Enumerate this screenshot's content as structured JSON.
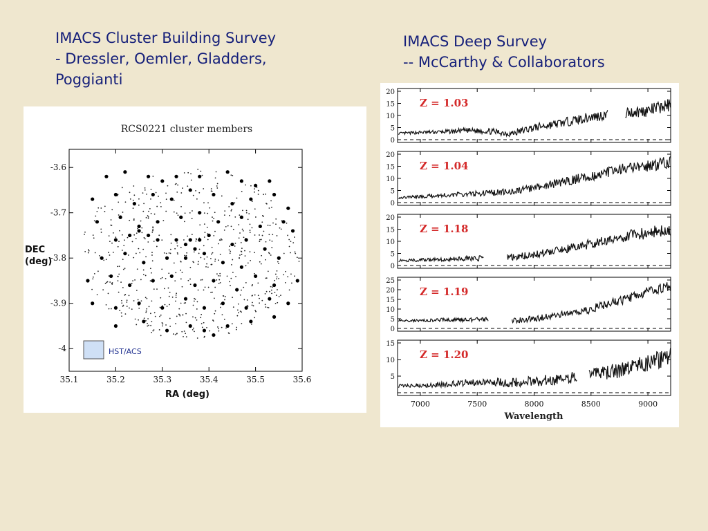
{
  "left_heading": {
    "line1": "IMACS Cluster Building Survey",
    "line2": "- Dressler, Oemler, Gladders,",
    "line3": "Poggianti"
  },
  "right_heading": {
    "line1": "IMACS Deep Survey",
    "line2": "-- McCarthy & Collaborators"
  },
  "colors": {
    "background": "#efe7cf",
    "heading": "#16207a",
    "redshift_label": "#d42a2a",
    "hst_box": "#cfe0f6"
  },
  "chart_data": [
    {
      "type": "scatter",
      "title": "RCS0221 cluster members",
      "xlabel": "RA (deg)",
      "ylabel_line1": "DEC",
      "ylabel_line2": "(deg)",
      "xlim": [
        35.1,
        35.6
      ],
      "ylim": [
        -4.05,
        -3.56
      ],
      "xticks": [
        "35.1",
        "35.2",
        "35.3",
        "35.4",
        "35.5",
        "35.6"
      ],
      "yticks": [
        "-3.6",
        "-3.7",
        "-3.8",
        "-3.9",
        "-4"
      ],
      "annotation": "HST/ACS",
      "field_center": [
        35.36,
        -3.79
      ],
      "field_radius_ra": 0.235,
      "field_radius_dec": 0.19,
      "cluster_members": [
        [
          35.18,
          -3.62
        ],
        [
          35.22,
          -3.61
        ],
        [
          35.27,
          -3.62
        ],
        [
          35.3,
          -3.63
        ],
        [
          35.33,
          -3.62
        ],
        [
          35.38,
          -3.62
        ],
        [
          35.44,
          -3.61
        ],
        [
          35.47,
          -3.63
        ],
        [
          35.5,
          -3.64
        ],
        [
          35.53,
          -3.63
        ],
        [
          35.15,
          -3.67
        ],
        [
          35.2,
          -3.66
        ],
        [
          35.24,
          -3.68
        ],
        [
          35.28,
          -3.66
        ],
        [
          35.32,
          -3.67
        ],
        [
          35.36,
          -3.65
        ],
        [
          35.41,
          -3.66
        ],
        [
          35.45,
          -3.68
        ],
        [
          35.49,
          -3.67
        ],
        [
          35.54,
          -3.66
        ],
        [
          35.57,
          -3.69
        ],
        [
          35.16,
          -3.72
        ],
        [
          35.21,
          -3.71
        ],
        [
          35.25,
          -3.73
        ],
        [
          35.29,
          -3.72
        ],
        [
          35.34,
          -3.71
        ],
        [
          35.38,
          -3.7
        ],
        [
          35.42,
          -3.72
        ],
        [
          35.47,
          -3.71
        ],
        [
          35.51,
          -3.73
        ],
        [
          35.56,
          -3.72
        ],
        [
          35.2,
          -3.76
        ],
        [
          35.23,
          -3.75
        ],
        [
          35.25,
          -3.74
        ],
        [
          35.27,
          -3.75
        ],
        [
          35.29,
          -3.76
        ],
        [
          35.33,
          -3.76
        ],
        [
          35.35,
          -3.77
        ],
        [
          35.36,
          -3.76
        ],
        [
          35.37,
          -3.78
        ],
        [
          35.38,
          -3.76
        ],
        [
          35.4,
          -3.75
        ],
        [
          35.45,
          -3.77
        ],
        [
          35.48,
          -3.76
        ],
        [
          35.52,
          -3.78
        ],
        [
          35.58,
          -3.74
        ],
        [
          35.17,
          -3.8
        ],
        [
          35.22,
          -3.79
        ],
        [
          35.26,
          -3.81
        ],
        [
          35.31,
          -3.8
        ],
        [
          35.35,
          -3.8
        ],
        [
          35.39,
          -3.79
        ],
        [
          35.43,
          -3.81
        ],
        [
          35.47,
          -3.82
        ],
        [
          35.55,
          -3.8
        ],
        [
          35.14,
          -3.85
        ],
        [
          35.19,
          -3.84
        ],
        [
          35.23,
          -3.86
        ],
        [
          35.28,
          -3.85
        ],
        [
          35.32,
          -3.84
        ],
        [
          35.37,
          -3.86
        ],
        [
          35.41,
          -3.85
        ],
        [
          35.46,
          -3.87
        ],
        [
          35.5,
          -3.84
        ],
        [
          35.54,
          -3.86
        ],
        [
          35.59,
          -3.85
        ],
        [
          35.15,
          -3.9
        ],
        [
          35.2,
          -3.91
        ],
        [
          35.25,
          -3.9
        ],
        [
          35.3,
          -3.91
        ],
        [
          35.35,
          -3.89
        ],
        [
          35.39,
          -3.91
        ],
        [
          35.43,
          -3.9
        ],
        [
          35.48,
          -3.91
        ],
        [
          35.53,
          -3.89
        ],
        [
          35.57,
          -3.9
        ],
        [
          35.2,
          -3.95
        ],
        [
          35.26,
          -3.94
        ],
        [
          35.31,
          -3.96
        ],
        [
          35.36,
          -3.95
        ],
        [
          35.39,
          -3.96
        ],
        [
          35.41,
          -3.97
        ],
        [
          35.44,
          -3.95
        ],
        [
          35.49,
          -3.94
        ],
        [
          35.54,
          -3.93
        ]
      ]
    },
    {
      "type": "line",
      "xlabel": "Wavelength",
      "xlim": [
        6800,
        9200
      ],
      "xticks": [
        "7000",
        "7500",
        "8000",
        "8500",
        "9000"
      ],
      "series": [
        {
          "name": "Z = 1.03",
          "ylim": [
            0,
            20
          ],
          "yticks": [
            "0",
            "5",
            "10",
            "15",
            "20"
          ],
          "x": [
            6800,
            7000,
            7200,
            7400,
            7600,
            7800,
            8000,
            8200,
            8400,
            8600,
            8800,
            9000,
            9200
          ],
          "y": [
            2.5,
            3,
            3.2,
            3.8,
            3.5,
            2.5,
            5,
            6.5,
            8.5,
            10,
            11,
            12,
            14.5
          ],
          "gaps": [
            [
              8650,
              8800
            ]
          ]
        },
        {
          "name": "Z = 1.04",
          "ylim": [
            0,
            20
          ],
          "yticks": [
            "0",
            "5",
            "10",
            "15",
            "20"
          ],
          "x": [
            6800,
            7000,
            7200,
            7400,
            7600,
            7800,
            8000,
            8200,
            8400,
            8600,
            8800,
            9000,
            9200
          ],
          "y": [
            2,
            2.5,
            3,
            3.5,
            4,
            4.5,
            6,
            8,
            10,
            12,
            14,
            15,
            17
          ],
          "gaps": []
        },
        {
          "name": "Z = 1.18",
          "ylim": [
            0,
            20
          ],
          "yticks": [
            "0",
            "5",
            "10",
            "15",
            "20"
          ],
          "x": [
            6800,
            7000,
            7200,
            7400,
            7600,
            7800,
            8000,
            8200,
            8400,
            8600,
            8800,
            9000,
            9200
          ],
          "y": [
            2,
            2.3,
            2.5,
            2.8,
            3,
            3.5,
            4.5,
            6,
            8,
            10,
            12,
            13.5,
            15
          ],
          "gaps": [
            [
              7560,
              7760
            ]
          ]
        },
        {
          "name": "Z = 1.19",
          "ylim": [
            0,
            25
          ],
          "yticks": [
            "0",
            "5",
            "10",
            "15",
            "20",
            "25"
          ],
          "x": [
            6800,
            7000,
            7200,
            7400,
            7600,
            7800,
            8000,
            8200,
            8400,
            8600,
            8800,
            9000,
            9200
          ],
          "y": [
            4,
            4,
            4.5,
            4.5,
            4.5,
            4,
            5,
            7,
            8,
            12,
            15,
            19,
            22
          ],
          "gaps": [
            [
              7600,
              7800
            ]
          ]
        },
        {
          "name": "Z = 1.20",
          "ylim": [
            0,
            15
          ],
          "yticks": [
            "5",
            "10",
            "15"
          ],
          "x": [
            6800,
            7000,
            7200,
            7400,
            7600,
            7800,
            8000,
            8200,
            8400,
            8600,
            8800,
            9000,
            9200
          ],
          "y": [
            2,
            2.3,
            2.5,
            3,
            3.5,
            3,
            3.5,
            4,
            4.5,
            6,
            7,
            9,
            11
          ],
          "gaps": [
            [
              8380,
              8480
            ]
          ]
        }
      ]
    }
  ]
}
